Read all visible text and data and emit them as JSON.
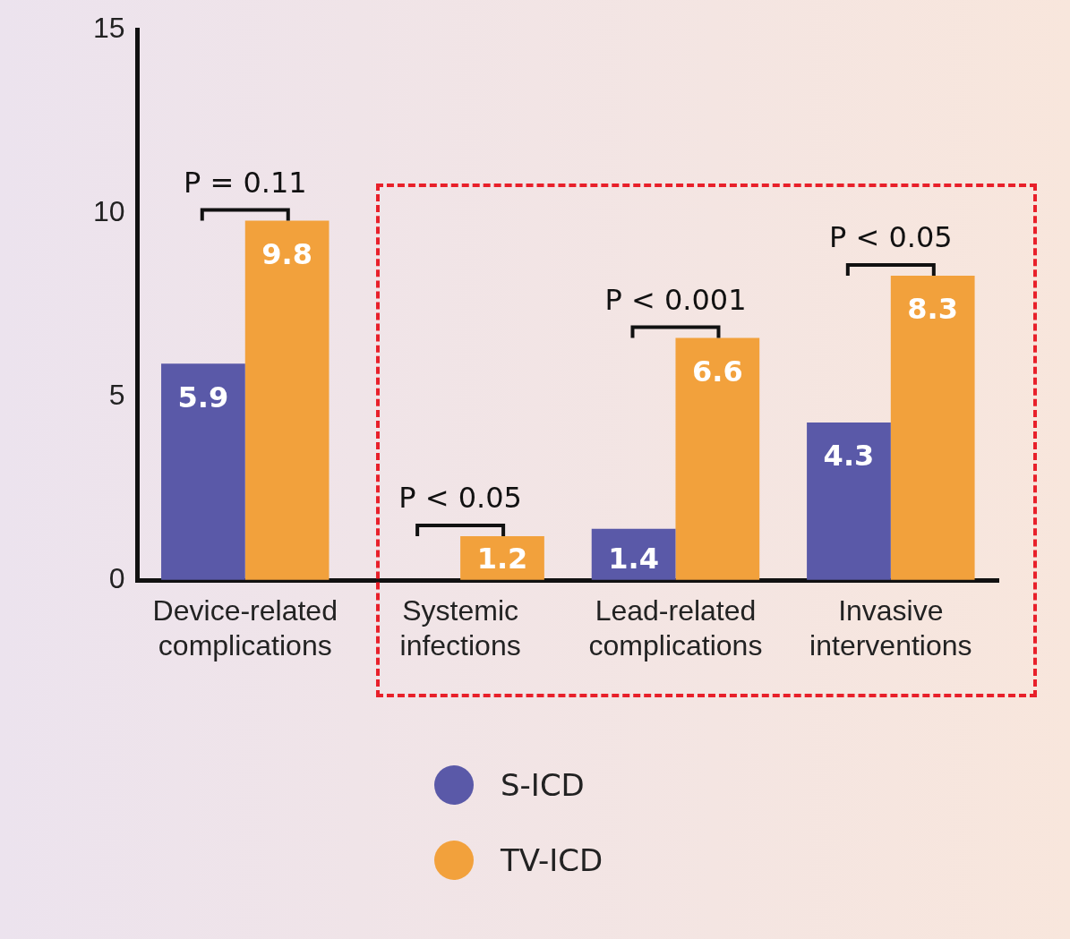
{
  "chart_data": {
    "type": "bar",
    "categories": [
      "Device-related complications",
      "Systemic infections",
      "Lead-related complications",
      "Invasive interventions"
    ],
    "series": [
      {
        "name": "S-ICD",
        "color": "#5a59a8",
        "values": [
          5.9,
          null,
          1.4,
          4.3
        ]
      },
      {
        "name": "TV-ICD",
        "color": "#f2a13c",
        "values": [
          9.8,
          1.2,
          6.6,
          8.3
        ]
      }
    ],
    "ylim": [
      0,
      15
    ],
    "yticks": [
      0,
      5,
      10,
      15
    ],
    "grid": false,
    "legend": "bottom",
    "data_labels": true,
    "annotations": [
      "P = 0.11",
      "P < 0.05",
      "P < 0.001",
      "P < 0.05"
    ]
  }
}
